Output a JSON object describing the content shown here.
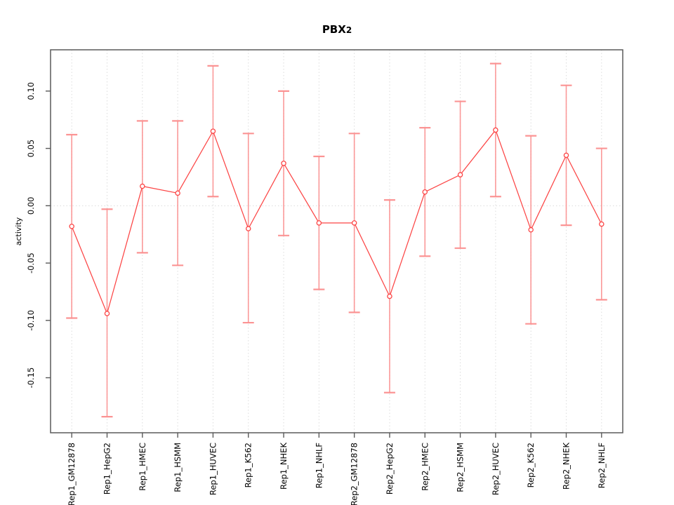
{
  "title": {
    "main": "PBX",
    "sub": "2",
    "full": "PBX2"
  },
  "chart_data": {
    "type": "line",
    "title": "PBX2",
    "xlabel": "",
    "ylabel": "activity",
    "legend_position": "none",
    "point_style": "open-circle",
    "error_bars": true,
    "grid": "vertical dotted gridline at each category; horizontal dotted line at y=0",
    "categories": [
      "Rep1_GM12878",
      "Rep1_HepG2",
      "Rep1_HMEC",
      "Rep1_HSMM",
      "Rep1_HUVEC",
      "Rep1_K562",
      "Rep1_NHEK",
      "Rep1_NHLF",
      "Rep2_GM12878",
      "Rep2_HepG2",
      "Rep2_HMEC",
      "Rep2_HSMM",
      "Rep2_HUVEC",
      "Rep2_K562",
      "Rep2_NHEK",
      "Rep2_NHLF"
    ],
    "series": [
      {
        "name": "activity",
        "values": [
          -0.018,
          -0.094,
          0.017,
          0.011,
          0.065,
          -0.02,
          0.037,
          -0.015,
          -0.015,
          -0.079,
          0.012,
          0.027,
          0.066,
          -0.021,
          0.044,
          -0.016
        ],
        "error_upper": [
          0.062,
          -0.003,
          0.074,
          0.074,
          0.122,
          0.063,
          0.1,
          0.043,
          0.063,
          0.005,
          0.068,
          0.091,
          0.124,
          0.061,
          0.105,
          0.05
        ],
        "error_lower": [
          -0.098,
          -0.184,
          -0.041,
          -0.052,
          0.008,
          -0.102,
          -0.026,
          -0.073,
          -0.093,
          -0.163,
          -0.044,
          -0.037,
          0.008,
          -0.103,
          -0.017,
          -0.082
        ]
      }
    ],
    "ytick_labels": [
      "0.10",
      "0.05",
      "0.00",
      "-0.05",
      "-0.10",
      "-0.15"
    ],
    "ylim": [
      -0.198,
      0.136
    ],
    "colors": {
      "line": "#fc4545",
      "error_bar": "#fb8f8f",
      "grid": "#dcdcdc",
      "box": "#5a5a5a",
      "tick": "#5a5a5a",
      "text": "#000000",
      "background": "#ffffff"
    }
  }
}
